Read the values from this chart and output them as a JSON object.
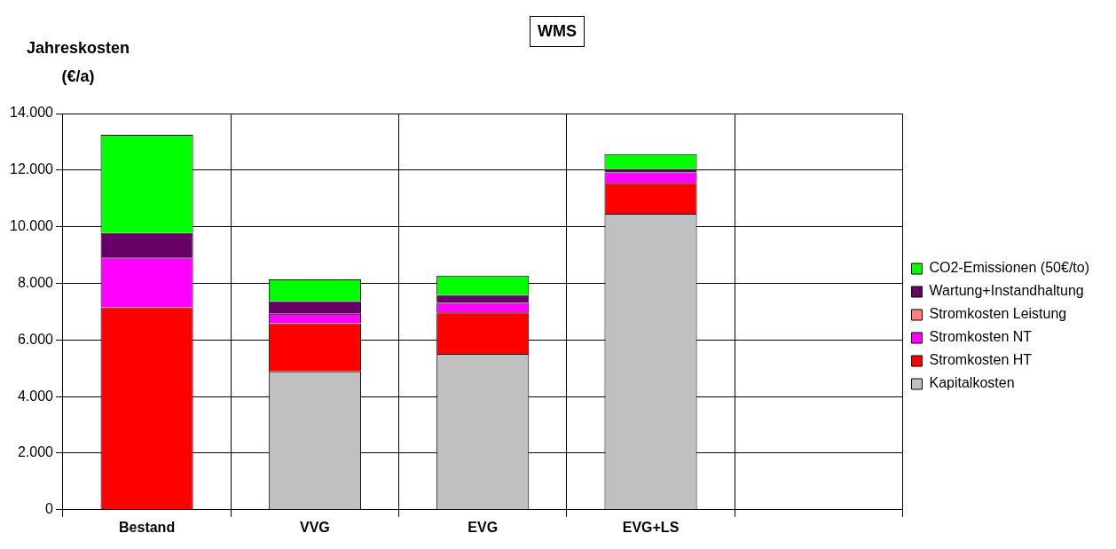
{
  "chart_data": {
    "type": "bar",
    "title": "WMS",
    "ylabel": "Jahreskosten (€/a)",
    "categories": [
      "Bestand",
      "VVG",
      "EVG",
      "EVG+LS",
      null
    ],
    "stacked": true,
    "series": [
      {
        "name": "Kapitalkosten",
        "color": "#c0c0c0",
        "values": [
          0,
          4890,
          5510,
          10460,
          null
        ]
      },
      {
        "name": "Stromkosten HT",
        "color": "#ff0000",
        "values": [
          7150,
          1700,
          1460,
          1090,
          null
        ]
      },
      {
        "name": "Stromkosten NT",
        "color": "#ff00ff",
        "values": [
          1770,
          340,
          340,
          370,
          null
        ]
      },
      {
        "name": "Stromkosten Leistung",
        "color": "#ff8080",
        "values": [
          0,
          0,
          0,
          0,
          null
        ]
      },
      {
        "name": "Wartung+Instandhaltung",
        "color": "#660066",
        "values": [
          860,
          440,
          280,
          120,
          null
        ]
      },
      {
        "name": "CO2-Emissionen (50€/to)",
        "color": "#00ff00",
        "values": [
          3470,
          770,
          680,
          530,
          null
        ]
      }
    ],
    "ylim": [
      0,
      14000
    ],
    "yticks": [
      {
        "value": 0,
        "label": "0"
      },
      {
        "value": 2000,
        "label": "2.000"
      },
      {
        "value": 4000,
        "label": "4.000"
      },
      {
        "value": 6000,
        "label": "6.000"
      },
      {
        "value": 8000,
        "label": "8.000"
      },
      {
        "value": 10000,
        "label": "10.000"
      },
      {
        "value": 12000,
        "label": "12.000"
      },
      {
        "value": 14000,
        "label": "14.000"
      }
    ],
    "grid": true,
    "legend": "right"
  }
}
